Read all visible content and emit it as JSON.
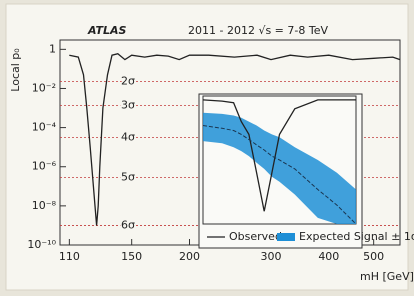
{
  "chart_data": [
    {
      "type": "line",
      "title": "ATLAS",
      "subtitle": "2011 - 2012   √s = 7-8 TeV",
      "x_label": "mH [GeV]",
      "y_label": "Local p₀",
      "xlog": true,
      "ylog": true,
      "grid": false,
      "xlim": [
        105,
        570
      ],
      "ylim": [
        1e-10,
        3
      ],
      "xticks": [
        110,
        150,
        200,
        300,
        400,
        500
      ],
      "yticks": [
        1,
        {
          "value": 0.01,
          "label": "10⁻²"
        },
        {
          "value": 0.0001,
          "label": "10⁻⁴"
        },
        {
          "value": 1e-06,
          "label": "10⁻⁶"
        },
        {
          "value": 1e-08,
          "label": "10⁻⁸"
        },
        {
          "value": 1e-10,
          "label": "10⁻¹⁰"
        }
      ],
      "annotations": [
        {
          "label": "2σ",
          "value": 0.0228
        },
        {
          "label": "3σ",
          "value": 0.00135
        },
        {
          "label": "4σ",
          "value": 3.17e-05
        },
        {
          "label": "5σ",
          "value": 2.87e-07
        },
        {
          "label": "6σ",
          "value": 9.87e-10
        }
      ],
      "x": [
        110,
        115,
        118,
        120,
        122,
        124,
        125,
        126,
        127,
        128,
        130,
        133,
        136,
        140,
        145,
        150,
        160,
        170,
        180,
        190,
        200,
        220,
        250,
        280,
        300,
        330,
        360,
        400,
        450,
        500,
        550,
        570
      ],
      "series": [
        {
          "name": "Observed",
          "color": "#222222",
          "values": [
            0.5,
            0.4,
            0.05,
            0.001,
            1e-05,
            1e-07,
            1e-08,
            1e-09,
            1e-08,
            1e-06,
            0.001,
            0.05,
            0.5,
            0.6,
            0.3,
            0.5,
            0.4,
            0.5,
            0.45,
            0.3,
            0.5,
            0.5,
            0.4,
            0.5,
            0.3,
            0.5,
            0.4,
            0.5,
            0.3,
            0.35,
            0.4,
            0.3
          ]
        }
      ]
    },
    {
      "type": "band",
      "xlog": false,
      "ylog": true,
      "legend": "bottom",
      "xlim": [
        110,
        150
      ],
      "ylim": [
        1e-10,
        1
      ],
      "x": [
        110,
        115,
        118,
        120,
        122,
        124,
        126,
        128,
        130,
        134,
        140,
        145,
        150
      ],
      "series": [
        {
          "name": "Observed",
          "color": "#222222",
          "values": [
            0.5,
            0.4,
            0.3,
            0.01,
            0.001,
            1e-06,
            1e-09,
            1e-06,
            0.001,
            0.1,
            0.5,
            0.5,
            0.5
          ]
        },
        {
          "name": "Expected Signal ± 1σ",
          "color": "#1e8fd6",
          "values": [
            0.005,
            0.003,
            0.002,
            0.001,
            0.0004,
            0.00015,
            6e-05,
            2e-05,
            1e-05,
            2e-06,
            5e-08,
            3e-09,
            1e-10
          ],
          "lower": [
            0.0003,
            0.0002,
            0.0001,
            5e-05,
            2e-05,
            6e-06,
            2e-06,
            5e-07,
            2e-07,
            2e-08,
            3e-10,
            1e-10,
            1e-10
          ],
          "upper": [
            0.05,
            0.04,
            0.03,
            0.02,
            0.01,
            0.005,
            0.002,
            0.001,
            0.0006,
            0.0001,
            1e-05,
            1e-06,
            5e-08
          ]
        }
      ]
    }
  ]
}
